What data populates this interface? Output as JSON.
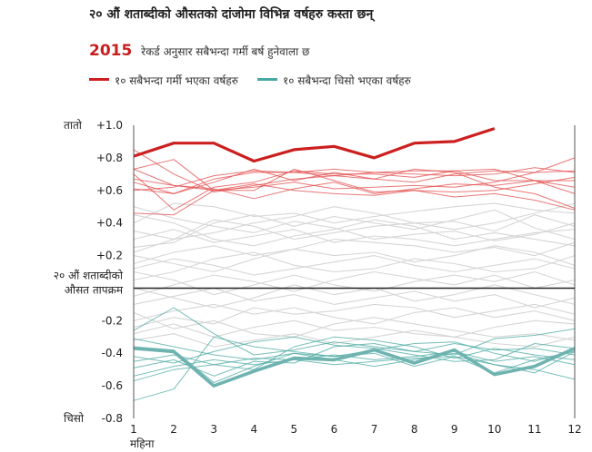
{
  "title": "२० औं शताब्दीको औसतको दांजोमा विभिन्न वर्षहरु कस्ता छन्",
  "subtitle": {
    "year": "2015",
    "text": "रेकर्ड अनुसार सबैभन्दा गर्मी बर्ष हुनेवाला छ"
  },
  "legend": {
    "hot": "१० सबैभन्दा गर्मी भएका वर्षहरु",
    "cold": "१० सबैभन्दा चिसो भएका वर्षहरु"
  },
  "colors": {
    "hot": "#e24a4a",
    "hot_highlight": "#cc1f1f",
    "cold": "#4aa8a2",
    "cold_highlight": "#6fb3b0",
    "other": "#d6d6d6",
    "baseline": "#222222"
  },
  "chart_data": {
    "type": "line",
    "title": "२० औं शताब्दीको औसतको दांजोमा विभिन्न वर्षहरु कस्ता छन्",
    "xlabel": "महिना",
    "ylabel": "",
    "x": [
      1,
      2,
      3,
      4,
      5,
      6,
      7,
      8,
      9,
      10,
      11,
      12
    ],
    "xlim": [
      1,
      12
    ],
    "ylim": [
      -0.8,
      1.0
    ],
    "y_ticks": [
      {
        "value": 1.0,
        "label": "+1.0"
      },
      {
        "value": 0.8,
        "label": "+0.8"
      },
      {
        "value": 0.6,
        "label": "+0.6"
      },
      {
        "value": 0.4,
        "label": "+0.4"
      },
      {
        "value": 0.2,
        "label": "+0.2"
      },
      {
        "value": -0.2,
        "label": "-0.2"
      },
      {
        "value": -0.4,
        "label": "-0.4"
      },
      {
        "value": -0.6,
        "label": "-0.6"
      },
      {
        "value": -0.8,
        "label": "-0.8"
      }
    ],
    "y_top_label": "तातो",
    "y_bottom_label": "चिसो",
    "baseline_label": [
      "२० औं शताब्दीको",
      "औसत तापक्रम"
    ],
    "grid": false,
    "series": [
      {
        "group": "hot",
        "highlight": true,
        "values": [
          0.81,
          0.89,
          0.89,
          0.78,
          0.85,
          0.87,
          0.8,
          0.89,
          0.9,
          0.98,
          null,
          null
        ]
      },
      {
        "group": "hot",
        "values": [
          0.7,
          0.48,
          0.62,
          0.65,
          0.72,
          0.7,
          0.7,
          0.68,
          0.72,
          0.66,
          0.66,
          0.62
        ]
      },
      {
        "group": "hot",
        "values": [
          0.61,
          0.58,
          0.67,
          0.71,
          0.71,
          0.73,
          0.71,
          0.7,
          0.69,
          0.7,
          0.74,
          0.71
        ]
      },
      {
        "group": "hot",
        "values": [
          0.73,
          0.79,
          0.6,
          0.64,
          0.6,
          0.58,
          0.57,
          0.6,
          0.59,
          0.6,
          0.64,
          0.68
        ]
      },
      {
        "group": "hot",
        "values": [
          0.46,
          0.45,
          0.6,
          0.6,
          0.73,
          0.66,
          0.59,
          0.6,
          0.56,
          0.58,
          0.54,
          0.48
        ]
      },
      {
        "group": "hot",
        "values": [
          0.65,
          0.58,
          0.65,
          0.73,
          0.66,
          0.71,
          0.67,
          0.65,
          0.7,
          0.72,
          0.71,
          0.72
        ]
      },
      {
        "group": "hot",
        "values": [
          0.6,
          0.62,
          0.69,
          0.72,
          0.71,
          0.69,
          0.67,
          0.73,
          0.71,
          0.62,
          0.58,
          0.49
        ]
      },
      {
        "group": "hot",
        "values": [
          0.85,
          0.7,
          0.59,
          0.63,
          0.67,
          0.69,
          0.71,
          0.72,
          0.72,
          0.73,
          0.66,
          0.66
        ]
      },
      {
        "group": "hot",
        "values": [
          0.73,
          0.63,
          0.61,
          0.55,
          0.61,
          0.65,
          0.58,
          0.61,
          0.64,
          0.63,
          0.66,
          0.58
        ]
      },
      {
        "group": "hot",
        "values": [
          0.67,
          0.63,
          0.6,
          0.62,
          0.65,
          0.61,
          0.62,
          0.63,
          0.62,
          0.65,
          0.71,
          0.8
        ]
      },
      {
        "group": "cold",
        "highlight": true,
        "values": [
          -0.37,
          -0.39,
          -0.6,
          -0.51,
          -0.43,
          -0.44,
          -0.38,
          -0.46,
          -0.38,
          -0.53,
          -0.48,
          -0.37
        ]
      },
      {
        "group": "cold",
        "values": [
          -0.36,
          -0.38,
          -0.58,
          -0.48,
          -0.4,
          -0.42,
          -0.4,
          -0.48,
          -0.42,
          -0.52,
          -0.44,
          -0.39
        ]
      },
      {
        "group": "cold",
        "values": [
          -0.54,
          -0.48,
          -0.44,
          -0.47,
          -0.44,
          -0.41,
          -0.44,
          -0.42,
          -0.39,
          -0.45,
          -0.42,
          -0.47
        ]
      },
      {
        "group": "cold",
        "values": [
          -0.69,
          -0.62,
          -0.3,
          -0.36,
          -0.39,
          -0.42,
          -0.38,
          -0.34,
          -0.33,
          -0.4,
          -0.45,
          -0.38
        ]
      },
      {
        "group": "cold",
        "values": [
          -0.26,
          -0.12,
          -0.28,
          -0.41,
          -0.38,
          -0.33,
          -0.36,
          -0.39,
          -0.41,
          -0.31,
          -0.29,
          -0.25
        ]
      },
      {
        "group": "cold",
        "values": [
          -0.49,
          -0.44,
          -0.54,
          -0.45,
          -0.46,
          -0.36,
          -0.34,
          -0.39,
          -0.34,
          -0.38,
          -0.37,
          -0.41
        ]
      },
      {
        "group": "cold",
        "values": [
          -0.42,
          -0.46,
          -0.39,
          -0.33,
          -0.3,
          -0.35,
          -0.37,
          -0.41,
          -0.45,
          -0.44,
          -0.34,
          -0.37
        ]
      },
      {
        "group": "cold",
        "values": [
          -0.31,
          -0.36,
          -0.41,
          -0.44,
          -0.4,
          -0.44,
          -0.48,
          -0.44,
          -0.4,
          -0.47,
          -0.52,
          -0.39
        ]
      },
      {
        "group": "cold",
        "values": [
          -0.45,
          -0.41,
          -0.47,
          -0.5,
          -0.36,
          -0.3,
          -0.32,
          -0.36,
          -0.43,
          -0.37,
          -0.41,
          -0.44
        ]
      },
      {
        "group": "cold",
        "values": [
          -0.57,
          -0.5,
          -0.47,
          -0.43,
          -0.44,
          -0.47,
          -0.45,
          -0.43,
          -0.42,
          -0.47,
          -0.5,
          -0.56
        ]
      },
      {
        "group": "other",
        "values": [
          0.35,
          0.3,
          0.42,
          0.38,
          0.3,
          0.34,
          0.38,
          0.4,
          0.41,
          0.35,
          0.45,
          0.38
        ]
      },
      {
        "group": "other",
        "values": [
          0.25,
          0.28,
          0.4,
          0.45,
          0.38,
          0.44,
          0.4,
          0.36,
          0.42,
          0.48,
          0.37,
          0.3
        ]
      },
      {
        "group": "other",
        "values": [
          0.5,
          0.43,
          0.38,
          0.34,
          0.41,
          0.37,
          0.3,
          0.33,
          0.35,
          0.29,
          0.33,
          0.4
        ]
      },
      {
        "group": "other",
        "values": [
          0.15,
          0.22,
          0.26,
          0.2,
          0.24,
          0.3,
          0.28,
          0.26,
          0.22,
          0.25,
          0.2,
          0.28
        ]
      },
      {
        "group": "other",
        "values": [
          0.4,
          0.52,
          0.5,
          0.44,
          0.46,
          0.4,
          0.44,
          0.47,
          0.5,
          0.52,
          0.48,
          0.46
        ]
      },
      {
        "group": "other",
        "values": [
          0.05,
          0.1,
          0.18,
          0.22,
          0.14,
          0.1,
          0.12,
          0.18,
          0.15,
          0.1,
          0.12,
          0.2
        ]
      },
      {
        "group": "other",
        "values": [
          0.2,
          0.15,
          0.1,
          0.18,
          0.24,
          0.2,
          0.22,
          0.16,
          0.2,
          0.26,
          0.22,
          0.14
        ]
      },
      {
        "group": "other",
        "values": [
          -0.05,
          0.02,
          0.08,
          0.04,
          -0.02,
          0.05,
          0.1,
          0.06,
          0.02,
          0.08,
          0.0,
          0.05
        ]
      },
      {
        "group": "other",
        "values": [
          0.1,
          0.05,
          -0.04,
          0.02,
          0.08,
          0.02,
          -0.02,
          0.04,
          0.08,
          0.04,
          0.1,
          0.02
        ]
      },
      {
        "group": "other",
        "values": [
          -0.1,
          -0.05,
          0.0,
          -0.08,
          -0.04,
          -0.1,
          -0.06,
          -0.02,
          -0.08,
          -0.04,
          -0.12,
          -0.06
        ]
      },
      {
        "group": "other",
        "values": [
          -0.2,
          -0.14,
          -0.1,
          -0.16,
          -0.12,
          -0.18,
          -0.22,
          -0.15,
          -0.12,
          -0.18,
          -0.14,
          -0.2
        ]
      },
      {
        "group": "other",
        "values": [
          -0.28,
          -0.22,
          -0.3,
          -0.24,
          -0.2,
          -0.26,
          -0.24,
          -0.28,
          -0.3,
          -0.24,
          -0.2,
          -0.22
        ]
      },
      {
        "group": "other",
        "values": [
          -0.15,
          -0.25,
          -0.2,
          -0.28,
          -0.3,
          -0.22,
          -0.18,
          -0.22,
          -0.26,
          -0.3,
          -0.28,
          -0.32
        ]
      },
      {
        "group": "other",
        "values": [
          0.3,
          0.36,
          0.28,
          0.32,
          0.36,
          0.28,
          0.32,
          0.3,
          0.26,
          0.3,
          0.34,
          0.36
        ]
      },
      {
        "group": "other",
        "values": [
          0.0,
          -0.06,
          -0.12,
          -0.06,
          0.02,
          -0.04,
          0.0,
          -0.08,
          -0.04,
          0.02,
          -0.04,
          -0.1
        ]
      },
      {
        "group": "other",
        "values": [
          0.45,
          0.4,
          0.3,
          0.26,
          0.32,
          0.36,
          0.42,
          0.38,
          0.3,
          0.34,
          0.3,
          0.26
        ]
      },
      {
        "group": "other",
        "values": [
          -0.32,
          -0.28,
          -0.36,
          -0.32,
          -0.28,
          -0.34,
          -0.3,
          -0.26,
          -0.3,
          -0.34,
          -0.36,
          -0.3
        ]
      },
      {
        "group": "other",
        "values": [
          0.12,
          0.18,
          0.14,
          0.08,
          0.12,
          0.16,
          0.2,
          0.14,
          0.1,
          0.14,
          0.18,
          0.12
        ]
      },
      {
        "group": "other",
        "values": [
          -0.24,
          -0.18,
          -0.22,
          -0.12,
          -0.16,
          -0.14,
          -0.1,
          -0.12,
          -0.18,
          -0.14,
          -0.1,
          -0.16
        ]
      },
      {
        "group": "other",
        "values": [
          0.22,
          0.3,
          0.34,
          0.4,
          0.44,
          0.5,
          0.46,
          0.4,
          0.36,
          0.4,
          0.46,
          0.52
        ]
      }
    ]
  }
}
